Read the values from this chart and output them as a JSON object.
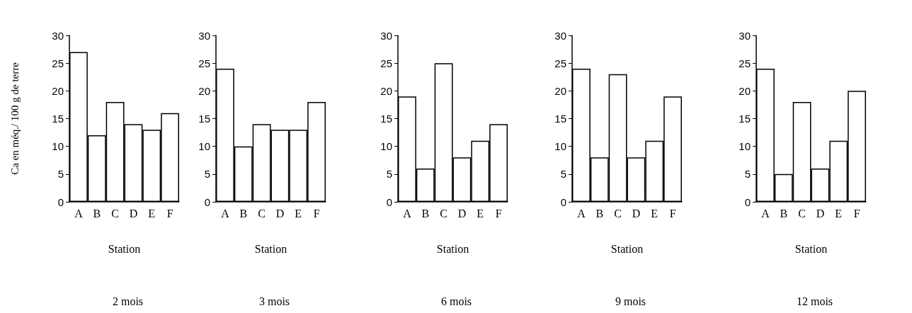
{
  "chart_data": [
    {
      "type": "bar",
      "title": "2 mois",
      "xlabel": "Station",
      "ylabel": "Ca en méq./ 100 g de terre",
      "categories": [
        "A",
        "B",
        "C",
        "D",
        "E",
        "F"
      ],
      "values": [
        27,
        12,
        18,
        14,
        13,
        16
      ],
      "color": "#ffffff",
      "ylim": [
        0,
        30
      ],
      "yticks": [
        0,
        5,
        10,
        15,
        20,
        25,
        30
      ]
    },
    {
      "type": "bar",
      "title": "3 mois",
      "xlabel": "Station",
      "categories": [
        "A",
        "B",
        "C",
        "D",
        "E",
        "F"
      ],
      "values": [
        24,
        10,
        14,
        13,
        13,
        18
      ],
      "color": "#ffffff",
      "ylim": [
        0,
        30
      ],
      "yticks": [
        0,
        5,
        10,
        15,
        20,
        25,
        30
      ]
    },
    {
      "type": "bar",
      "title": "6 mois",
      "xlabel": "Station",
      "categories": [
        "A",
        "B",
        "C",
        "D",
        "E",
        "F"
      ],
      "values": [
        19,
        6,
        25,
        8,
        11,
        14
      ],
      "color": "#ffffff",
      "ylim": [
        0,
        30
      ],
      "yticks": [
        0,
        5,
        10,
        15,
        20,
        25,
        30
      ]
    },
    {
      "type": "bar",
      "title": "9 mois",
      "xlabel": "Station",
      "categories": [
        "A",
        "B",
        "C",
        "D",
        "E",
        "F"
      ],
      "values": [
        24,
        8,
        23,
        8,
        11,
        19
      ],
      "color": "#ffffff",
      "ylim": [
        0,
        30
      ],
      "yticks": [
        0,
        5,
        10,
        15,
        20,
        25,
        30
      ]
    },
    {
      "type": "bar",
      "title": "12 mois",
      "xlabel": "Station",
      "categories": [
        "A",
        "B",
        "C",
        "D",
        "E",
        "F"
      ],
      "values": [
        24,
        5,
        18,
        6,
        11,
        20
      ],
      "color": "#ffffff",
      "ylim": [
        0,
        30
      ],
      "yticks": [
        0,
        5,
        10,
        15,
        20,
        25,
        30
      ]
    }
  ]
}
